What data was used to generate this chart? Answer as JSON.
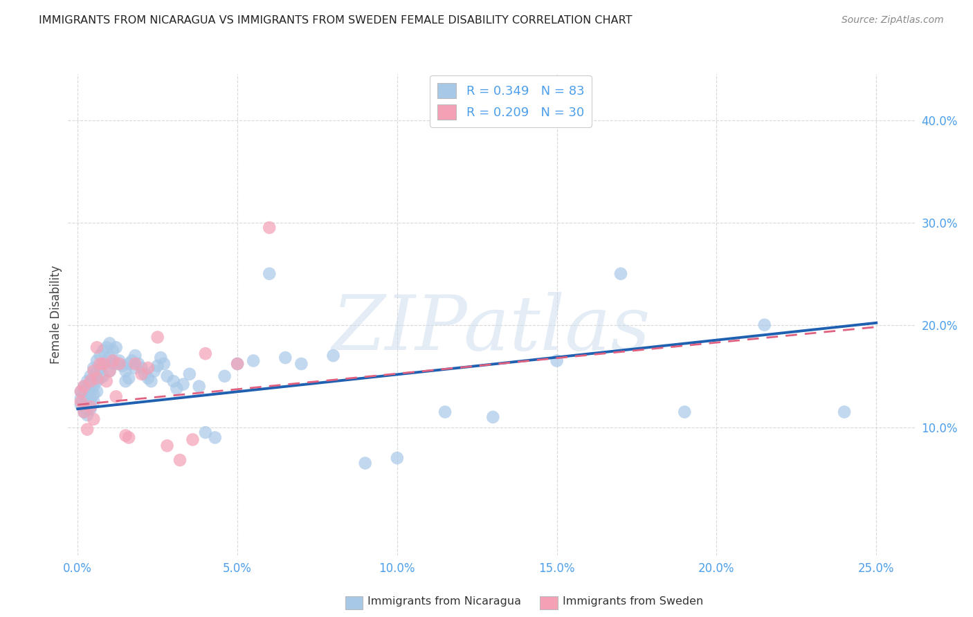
{
  "title": "IMMIGRANTS FROM NICARAGUA VS IMMIGRANTS FROM SWEDEN FEMALE DISABILITY CORRELATION CHART",
  "source": "Source: ZipAtlas.com",
  "xlabel_ticks": [
    "0.0%",
    "5.0%",
    "10.0%",
    "15.0%",
    "20.0%",
    "25.0%"
  ],
  "xlabel_vals": [
    0.0,
    0.05,
    0.1,
    0.15,
    0.2,
    0.25
  ],
  "ylabel_ticks": [
    "10.0%",
    "20.0%",
    "30.0%",
    "40.0%"
  ],
  "ylabel_vals": [
    0.1,
    0.2,
    0.3,
    0.4
  ],
  "xlim": [
    -0.003,
    0.262
  ],
  "ylim": [
    -0.025,
    0.445
  ],
  "ylabel": "Female Disability",
  "watermark": "ZIPatlas",
  "legend1_label": "R = 0.349   N = 83",
  "legend2_label": "R = 0.209   N = 30",
  "nicaragua_color": "#a8c8e8",
  "sweden_color": "#f4a0b5",
  "nicaragua_line_color": "#2060b0",
  "sweden_line_color": "#e06080",
  "background_color": "#ffffff",
  "grid_color": "#d8d8d8",
  "tick_color": "#4d9fec",
  "nicaragua_x": [
    0.001,
    0.001,
    0.001,
    0.002,
    0.002,
    0.002,
    0.002,
    0.003,
    0.003,
    0.003,
    0.003,
    0.003,
    0.004,
    0.004,
    0.004,
    0.004,
    0.004,
    0.005,
    0.005,
    0.005,
    0.005,
    0.005,
    0.006,
    0.006,
    0.006,
    0.006,
    0.007,
    0.007,
    0.007,
    0.008,
    0.008,
    0.008,
    0.009,
    0.009,
    0.01,
    0.01,
    0.01,
    0.011,
    0.011,
    0.012,
    0.012,
    0.013,
    0.014,
    0.015,
    0.015,
    0.016,
    0.016,
    0.017,
    0.018,
    0.018,
    0.019,
    0.02,
    0.021,
    0.022,
    0.023,
    0.024,
    0.025,
    0.026,
    0.027,
    0.028,
    0.03,
    0.031,
    0.033,
    0.035,
    0.038,
    0.04,
    0.043,
    0.046,
    0.05,
    0.055,
    0.06,
    0.065,
    0.07,
    0.08,
    0.09,
    0.1,
    0.115,
    0.13,
    0.15,
    0.17,
    0.19,
    0.215,
    0.24
  ],
  "nicaragua_y": [
    0.135,
    0.128,
    0.122,
    0.14,
    0.132,
    0.12,
    0.115,
    0.145,
    0.138,
    0.125,
    0.118,
    0.112,
    0.15,
    0.142,
    0.135,
    0.125,
    0.118,
    0.158,
    0.148,
    0.14,
    0.132,
    0.125,
    0.165,
    0.155,
    0.145,
    0.135,
    0.17,
    0.158,
    0.148,
    0.175,
    0.162,
    0.15,
    0.178,
    0.165,
    0.182,
    0.168,
    0.155,
    0.175,
    0.162,
    0.178,
    0.162,
    0.165,
    0.16,
    0.155,
    0.145,
    0.162,
    0.148,
    0.165,
    0.17,
    0.158,
    0.162,
    0.158,
    0.152,
    0.148,
    0.145,
    0.155,
    0.16,
    0.168,
    0.162,
    0.15,
    0.145,
    0.138,
    0.142,
    0.152,
    0.14,
    0.095,
    0.09,
    0.15,
    0.162,
    0.165,
    0.25,
    0.168,
    0.162,
    0.17,
    0.065,
    0.07,
    0.115,
    0.11,
    0.165,
    0.25,
    0.115,
    0.2,
    0.115
  ],
  "sweden_x": [
    0.001,
    0.001,
    0.002,
    0.002,
    0.003,
    0.004,
    0.004,
    0.005,
    0.005,
    0.006,
    0.006,
    0.007,
    0.008,
    0.009,
    0.01,
    0.011,
    0.012,
    0.013,
    0.015,
    0.016,
    0.018,
    0.02,
    0.022,
    0.025,
    0.028,
    0.032,
    0.036,
    0.04,
    0.05,
    0.06
  ],
  "sweden_y": [
    0.135,
    0.125,
    0.14,
    0.115,
    0.098,
    0.145,
    0.12,
    0.155,
    0.108,
    0.178,
    0.148,
    0.162,
    0.162,
    0.145,
    0.155,
    0.165,
    0.13,
    0.162,
    0.092,
    0.09,
    0.162,
    0.152,
    0.158,
    0.188,
    0.082,
    0.068,
    0.088,
    0.172,
    0.162,
    0.295
  ],
  "nic_line_x": [
    0.0,
    0.25
  ],
  "nic_line_y": [
    0.118,
    0.202
  ],
  "swe_line_x": [
    0.0,
    0.25
  ],
  "swe_line_y": [
    0.122,
    0.198
  ]
}
